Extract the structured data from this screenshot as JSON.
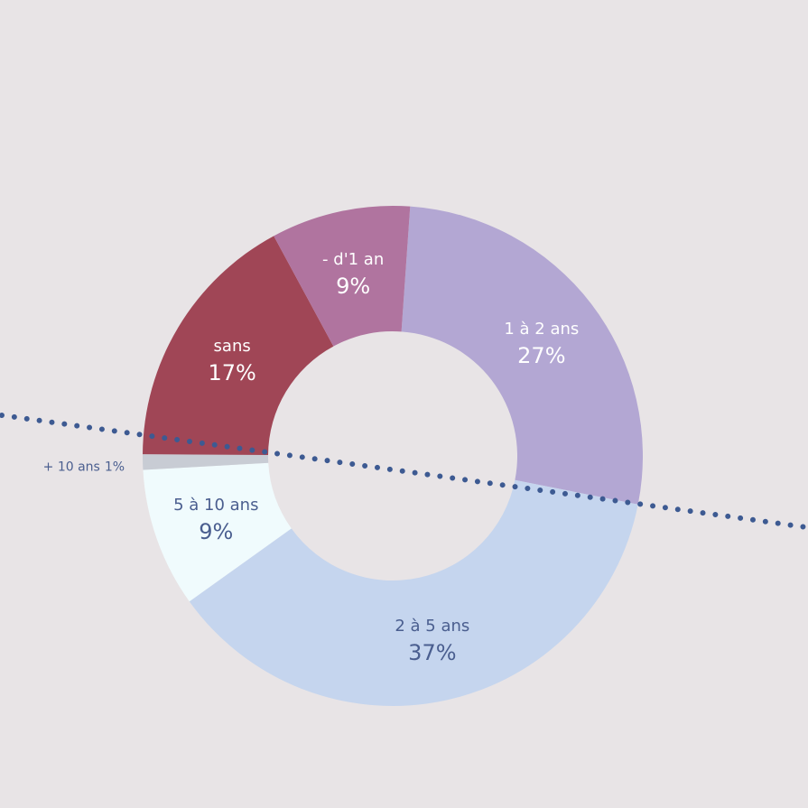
{
  "chart_data": {
    "type": "donut",
    "categories": [
      "1 à 2 ans",
      "2 à 5 ans",
      "5 à 10 ans",
      "+ 10 ans",
      "sans",
      "- d'1 an"
    ],
    "values": [
      27,
      37,
      9,
      1,
      17,
      9
    ],
    "value_labels": [
      "27%",
      "37%",
      "9%",
      "1%",
      "17%",
      "9%"
    ],
    "colors": [
      "#b3a7d3",
      "#c5d5ee",
      "#f0fbfd",
      "#c8ccd4",
      "#a04656",
      "#b0749f"
    ]
  }
}
